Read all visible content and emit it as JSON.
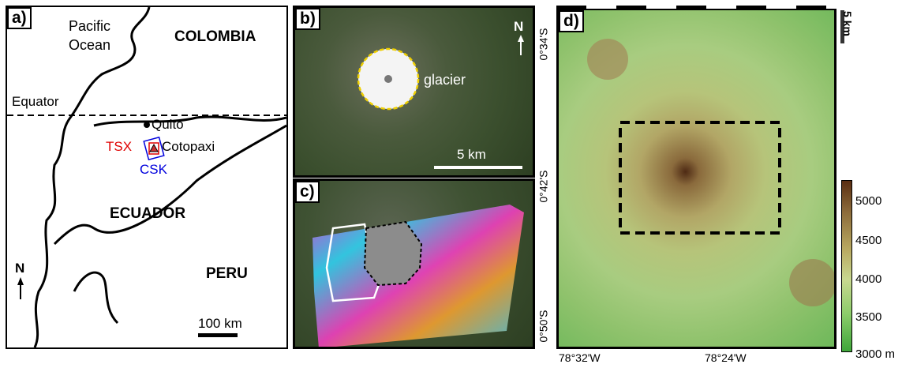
{
  "panel_a": {
    "label": "a)",
    "ocean": "Pacific\nOcean",
    "ocean_line1": "Pacific",
    "ocean_line2": "Ocean",
    "colombia": "COLOMBIA",
    "equator": "Equator",
    "quito": "Quito",
    "tsx": "TSX",
    "cotopaxi": "Cotopaxi",
    "csk": "CSK",
    "ecuador": "ECUADOR",
    "peru": "PERU",
    "north": "N",
    "scale": "100 km",
    "colors": {
      "tsx": "#e00000",
      "csk": "#0000dd"
    }
  },
  "panel_b": {
    "label": "b)",
    "glacier": "glacier",
    "north": "N",
    "scale": "5 km"
  },
  "panel_c": {
    "label": "c)"
  },
  "panel_d": {
    "label": "d)",
    "scale": "5 km",
    "lat_ticks": [
      "0°34'S",
      "0°42'S",
      "0°50'S"
    ],
    "lon_ticks": [
      "78°32'W",
      "78°24'W"
    ],
    "colorbar_ticks": [
      "5000",
      "4500",
      "4000",
      "3500",
      "3000 m"
    ],
    "colorbar_colors": [
      "#5a2e12",
      "#8b6a3a",
      "#b8a860",
      "#c8d890",
      "#8ccc6a",
      "#3fa63a"
    ]
  }
}
